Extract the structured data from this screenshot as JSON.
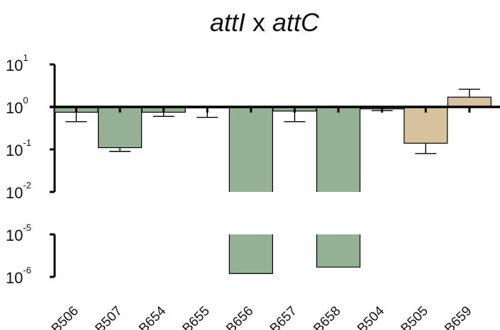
{
  "chart_data": {
    "type": "bar",
    "title": "attI x attC",
    "title_parts": {
      "a": "attI",
      "b": " x ",
      "c": "attC"
    },
    "scale": "log",
    "baseline": 1,
    "axis_break": "between 1e-2 and 1e-5",
    "categories": [
      "B506",
      "B507",
      "B654",
      "B655",
      "B656",
      "B657",
      "B658",
      "B504",
      "B505",
      "B659"
    ],
    "values": [
      0.75,
      0.11,
      0.75,
      0.95,
      1.2e-06,
      0.8,
      1.7e-06,
      0.9,
      0.14,
      1.7
    ],
    "error_ends": [
      0.45,
      0.09,
      0.6,
      0.57,
      null,
      0.45,
      null,
      0.82,
      0.08,
      2.6
    ],
    "series_colors": [
      "#94b196",
      "#94b196",
      "#94b196",
      "#94b196",
      "#94b196",
      "#94b196",
      "#94b196",
      "#94b196",
      "#d7c29e",
      "#d7c29e"
    ],
    "y_ticks_upper": [
      {
        "base": "10",
        "exp": "1"
      },
      {
        "base": "10",
        "exp": "0"
      },
      {
        "base": "10",
        "exp": "-1"
      },
      {
        "base": "10",
        "exp": "-2"
      }
    ],
    "y_ticks_lower": [
      {
        "base": "10",
        "exp": "-5"
      },
      {
        "base": "10",
        "exp": "-6"
      }
    ],
    "grid": false,
    "legend": "none"
  }
}
